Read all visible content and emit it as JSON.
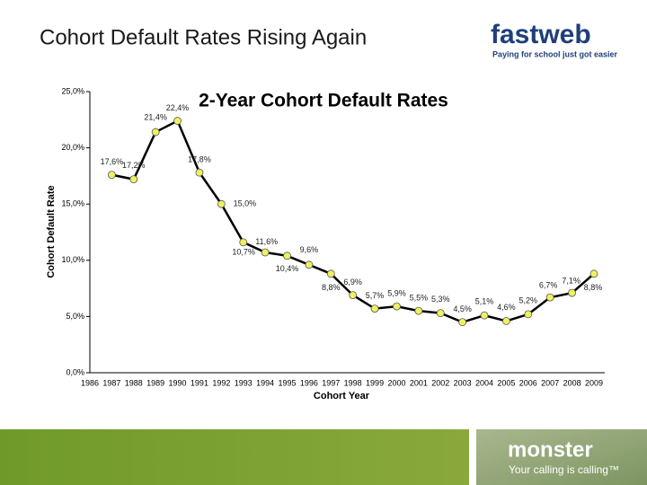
{
  "slide_title": "Cohort Default Rates Rising Again",
  "branding": {
    "top_logo": "fastweb",
    "top_tagline": "Paying for school just got easier",
    "bottom_logo": "monster",
    "bottom_tagline": "Your calling is calling™"
  },
  "chart_data": {
    "type": "line",
    "title": "2-Year Cohort Default Rates",
    "x_label": "Cohort Year",
    "y_label": "Cohort Default Rate",
    "categories": [
      "1986",
      "1987",
      "1988",
      "1989",
      "1990",
      "1991",
      "1992",
      "1993",
      "1994",
      "1995",
      "1996",
      "1997",
      "1998",
      "1999",
      "2000",
      "2001",
      "2002",
      "2003",
      "2004",
      "2005",
      "2006",
      "2007",
      "2008",
      "2009"
    ],
    "series": [
      {
        "name": "2-Year Cohort Default Rates",
        "color": "#000000",
        "marker_color": "#f0f060",
        "values": [
          null,
          17.6,
          17.2,
          21.4,
          22.4,
          17.8,
          15.0,
          11.6,
          10.7,
          10.4,
          9.6,
          8.8,
          6.9,
          5.7,
          5.9,
          5.5,
          5.3,
          4.5,
          5.1,
          4.6,
          5.2,
          6.7,
          7.1,
          8.8
        ],
        "value_labels": [
          null,
          "17,6%",
          "17,2%",
          "21,4%",
          "22,4%",
          "17,8%",
          "15,0%",
          "11,6%",
          "10,7%",
          "10,4%",
          "9,6%",
          "8,8%",
          "6,9%",
          "5,7%",
          "5,9%",
          "5,5%",
          "5,3%",
          "4,5%",
          "5,1%",
          "4,6%",
          "5,2%",
          "6,7%",
          "7,1%",
          "8,8%"
        ]
      }
    ],
    "ylim": [
      0,
      25
    ],
    "yticks": [
      {
        "value": 0,
        "label": "0,0%"
      },
      {
        "value": 5,
        "label": "5,0%"
      },
      {
        "value": 10,
        "label": "10,0%"
      },
      {
        "value": 15,
        "label": "15,0%"
      },
      {
        "value": 20,
        "label": "20,0%"
      },
      {
        "value": 25,
        "label": "25,0%"
      }
    ],
    "grid": false
  }
}
